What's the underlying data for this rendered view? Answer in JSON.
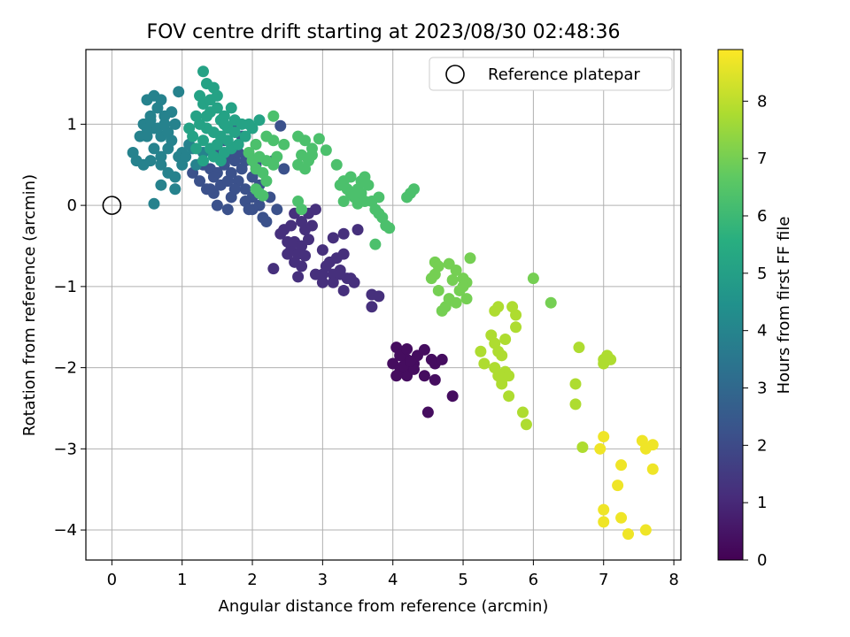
{
  "chart_data": {
    "type": "scatter",
    "title": "FOV centre drift starting at 2023/08/30 02:48:36",
    "xlabel": "Angular distance from reference (arcmin)",
    "ylabel": "Rotation from reference (arcmin)",
    "xlim": [
      -0.37,
      8.1
    ],
    "ylim": [
      -4.37,
      1.92
    ],
    "x_ticks": [
      0,
      1,
      2,
      3,
      4,
      5,
      6,
      7,
      8
    ],
    "y_ticks": [
      1,
      0,
      -1,
      -2,
      -3,
      -4
    ],
    "grid": true,
    "legend": {
      "position": "top-right",
      "entries": [
        {
          "label": "Reference platepar",
          "marker": "open-circle"
        }
      ]
    },
    "reference_point": {
      "x": 0,
      "y": 0
    },
    "colorbar": {
      "label": "Hours from first FF file",
      "range": [
        0,
        8.9
      ],
      "ticks": [
        0,
        1,
        2,
        3,
        4,
        5,
        6,
        7,
        8
      ],
      "colormap": "viridis"
    },
    "clusters": [
      {
        "hours": 0.3,
        "points": [
          [
            4.05,
            -1.75
          ],
          [
            4.15,
            -1.8
          ],
          [
            4.2,
            -1.9
          ],
          [
            4.25,
            -2.0
          ],
          [
            4.3,
            -1.95
          ],
          [
            4.1,
            -2.05
          ],
          [
            4.35,
            -1.85
          ],
          [
            4.2,
            -2.1
          ],
          [
            4.0,
            -1.95
          ],
          [
            4.15,
            -1.98
          ],
          [
            4.3,
            -2.02
          ],
          [
            4.05,
            -2.1
          ],
          [
            4.45,
            -1.78
          ],
          [
            4.55,
            -1.9
          ],
          [
            4.6,
            -1.95
          ],
          [
            4.7,
            -1.9
          ],
          [
            4.5,
            -2.55
          ],
          [
            4.6,
            -2.15
          ],
          [
            4.85,
            -2.35
          ],
          [
            4.45,
            -2.1
          ],
          [
            4.25,
            -1.92
          ],
          [
            4.1,
            -1.85
          ],
          [
            4.2,
            -1.77
          ]
        ]
      },
      {
        "hours": 1.2,
        "points": [
          [
            2.45,
            -0.3
          ],
          [
            2.55,
            -0.25
          ],
          [
            2.6,
            -0.45
          ],
          [
            2.7,
            -0.5
          ],
          [
            2.8,
            -0.42
          ],
          [
            2.55,
            -0.55
          ],
          [
            2.65,
            -0.6
          ],
          [
            2.75,
            -0.62
          ],
          [
            2.7,
            -0.75
          ],
          [
            2.65,
            -0.88
          ],
          [
            2.6,
            -0.7
          ],
          [
            2.3,
            -0.78
          ],
          [
            2.5,
            -0.45
          ],
          [
            2.75,
            -0.3
          ],
          [
            2.85,
            -0.25
          ],
          [
            2.7,
            -0.2
          ],
          [
            2.8,
            -0.1
          ],
          [
            2.9,
            -0.05
          ],
          [
            2.6,
            -0.1
          ],
          [
            2.4,
            -0.35
          ],
          [
            3.0,
            -0.55
          ],
          [
            3.05,
            -0.75
          ],
          [
            3.15,
            -0.85
          ],
          [
            3.25,
            -0.8
          ],
          [
            3.3,
            -0.6
          ],
          [
            3.1,
            -0.7
          ],
          [
            3.2,
            -0.65
          ],
          [
            3.35,
            -0.9
          ],
          [
            3.0,
            -0.95
          ],
          [
            3.15,
            -0.95
          ],
          [
            3.3,
            -1.05
          ],
          [
            3.25,
            -0.85
          ],
          [
            3.4,
            -0.9
          ],
          [
            3.15,
            -0.4
          ],
          [
            3.3,
            -0.35
          ],
          [
            3.5,
            -0.3
          ],
          [
            3.7,
            -1.1
          ],
          [
            3.8,
            -1.12
          ],
          [
            3.7,
            -1.25
          ],
          [
            3.45,
            -0.95
          ],
          [
            3.0,
            -0.85
          ],
          [
            2.9,
            -0.85
          ],
          [
            2.5,
            -0.6
          ]
        ]
      },
      {
        "hours": 2.2,
        "points": [
          [
            1.3,
            0.5
          ],
          [
            1.4,
            0.45
          ],
          [
            1.5,
            0.4
          ],
          [
            1.6,
            0.5
          ],
          [
            1.7,
            0.4
          ],
          [
            1.8,
            0.3
          ],
          [
            1.9,
            0.2
          ],
          [
            2.0,
            0.1
          ],
          [
            2.1,
            0.0
          ],
          [
            1.85,
            0.45
          ],
          [
            1.75,
            0.55
          ],
          [
            1.65,
            0.6
          ],
          [
            1.55,
            0.65
          ],
          [
            1.45,
            0.35
          ],
          [
            1.35,
            0.2
          ],
          [
            1.45,
            0.15
          ],
          [
            1.55,
            0.25
          ],
          [
            1.65,
            0.3
          ],
          [
            1.75,
            0.2
          ],
          [
            1.9,
            0.05
          ],
          [
            2.0,
            -0.05
          ],
          [
            2.15,
            -0.15
          ],
          [
            2.25,
            0.1
          ],
          [
            2.35,
            -0.05
          ],
          [
            2.2,
            -0.2
          ],
          [
            1.5,
            0.0
          ],
          [
            1.65,
            -0.05
          ],
          [
            1.8,
            0.65
          ],
          [
            1.95,
            0.6
          ],
          [
            2.05,
            0.5
          ],
          [
            1.25,
            0.3
          ],
          [
            1.15,
            0.4
          ],
          [
            2.3,
            0.55
          ],
          [
            2.45,
            0.45
          ],
          [
            2.0,
            0.35
          ],
          [
            1.7,
            0.1
          ],
          [
            1.95,
            -0.05
          ],
          [
            2.4,
            0.98
          ],
          [
            1.85,
            0.85
          ],
          [
            1.7,
            0.95
          ],
          [
            1.6,
            0.8
          ],
          [
            1.9,
            0.55
          ],
          [
            2.1,
            0.25
          ],
          [
            1.4,
            0.2
          ]
        ]
      },
      {
        "hours": 3.9,
        "points": [
          [
            0.5,
            1.3
          ],
          [
            0.6,
            1.35
          ],
          [
            0.7,
            1.3
          ],
          [
            0.65,
            1.2
          ],
          [
            0.55,
            1.1
          ],
          [
            0.45,
            1.0
          ],
          [
            0.6,
            0.95
          ],
          [
            0.7,
            0.85
          ],
          [
            0.8,
            0.9
          ],
          [
            0.9,
            1.0
          ],
          [
            0.75,
            1.1
          ],
          [
            0.85,
            1.15
          ],
          [
            0.95,
            1.4
          ],
          [
            0.8,
            0.7
          ],
          [
            0.7,
            0.6
          ],
          [
            0.55,
            0.55
          ],
          [
            0.45,
            0.5
          ],
          [
            0.35,
            0.55
          ],
          [
            0.3,
            0.65
          ],
          [
            0.4,
            0.85
          ],
          [
            0.5,
            0.95
          ],
          [
            0.6,
            0.7
          ],
          [
            0.7,
            0.5
          ],
          [
            0.8,
            0.4
          ],
          [
            0.9,
            0.35
          ],
          [
            0.95,
            0.6
          ],
          [
            1.0,
            0.65
          ],
          [
            1.1,
            0.75
          ],
          [
            1.0,
            0.5
          ],
          [
            0.9,
            0.2
          ],
          [
            0.7,
            0.25
          ],
          [
            0.6,
            0.02
          ],
          [
            1.2,
            0.5
          ],
          [
            1.3,
            0.65
          ],
          [
            0.65,
            0.95
          ],
          [
            0.55,
            1.05
          ],
          [
            0.5,
            0.85
          ],
          [
            0.75,
            1.0
          ],
          [
            0.85,
            0.8
          ],
          [
            1.05,
            0.6
          ],
          [
            1.15,
            0.7
          ]
        ]
      },
      {
        "hours": 5.1,
        "points": [
          [
            1.3,
            1.65
          ],
          [
            1.35,
            1.5
          ],
          [
            1.45,
            1.45
          ],
          [
            1.25,
            1.35
          ],
          [
            1.3,
            1.25
          ],
          [
            1.4,
            1.15
          ],
          [
            1.5,
            1.2
          ],
          [
            1.55,
            1.05
          ],
          [
            1.6,
            1.1
          ],
          [
            1.7,
            1.2
          ],
          [
            1.75,
            1.05
          ],
          [
            1.65,
            0.95
          ],
          [
            1.55,
            0.85
          ],
          [
            1.45,
            0.9
          ],
          [
            1.35,
            0.95
          ],
          [
            1.25,
            1.0
          ],
          [
            1.2,
            1.1
          ],
          [
            1.3,
            0.8
          ],
          [
            1.4,
            0.7
          ],
          [
            1.5,
            0.75
          ],
          [
            1.6,
            0.65
          ],
          [
            1.7,
            0.7
          ],
          [
            1.8,
            0.75
          ],
          [
            1.9,
            0.85
          ],
          [
            2.0,
            0.95
          ],
          [
            2.1,
            1.05
          ],
          [
            1.95,
            1.0
          ],
          [
            1.15,
            0.85
          ],
          [
            1.1,
            0.95
          ],
          [
            1.2,
            0.7
          ],
          [
            1.3,
            0.55
          ],
          [
            1.45,
            0.6
          ],
          [
            1.55,
            0.55
          ],
          [
            1.65,
            0.8
          ],
          [
            1.75,
            0.9
          ],
          [
            1.85,
            1.0
          ],
          [
            1.4,
            1.3
          ],
          [
            1.5,
            1.35
          ],
          [
            1.35,
            1.1
          ],
          [
            1.6,
            1.0
          ]
        ]
      },
      {
        "hours": 6.3,
        "points": [
          [
            2.0,
            0.55
          ],
          [
            2.1,
            0.6
          ],
          [
            2.2,
            0.55
          ],
          [
            2.3,
            0.5
          ],
          [
            2.05,
            0.45
          ],
          [
            2.15,
            0.4
          ],
          [
            2.2,
            0.3
          ],
          [
            2.35,
            0.6
          ],
          [
            2.45,
            0.75
          ],
          [
            2.3,
            0.8
          ],
          [
            2.2,
            0.85
          ],
          [
            2.3,
            1.1
          ],
          [
            2.05,
            0.75
          ],
          [
            1.95,
            0.65
          ],
          [
            2.1,
            0.15
          ],
          [
            2.15,
            0.12
          ],
          [
            2.05,
            0.2
          ],
          [
            2.65,
            0.85
          ],
          [
            2.75,
            0.8
          ],
          [
            2.85,
            0.7
          ],
          [
            2.95,
            0.82
          ],
          [
            3.05,
            0.68
          ],
          [
            2.7,
            0.62
          ],
          [
            2.8,
            0.55
          ],
          [
            2.75,
            0.45
          ],
          [
            2.65,
            0.5
          ],
          [
            2.85,
            0.62
          ],
          [
            3.2,
            0.5
          ],
          [
            3.3,
            0.3
          ],
          [
            3.35,
            0.2
          ],
          [
            3.4,
            0.15
          ],
          [
            3.45,
            0.1
          ],
          [
            3.5,
            0.2
          ],
          [
            3.55,
            0.3
          ],
          [
            3.6,
            0.35
          ],
          [
            3.65,
            0.25
          ],
          [
            3.55,
            0.15
          ],
          [
            3.5,
            0.02
          ],
          [
            3.6,
            0.05
          ],
          [
            3.7,
            0.05
          ],
          [
            3.75,
            -0.05
          ],
          [
            3.8,
            -0.1
          ],
          [
            3.85,
            -0.15
          ],
          [
            3.9,
            -0.25
          ],
          [
            3.95,
            -0.28
          ],
          [
            3.75,
            -0.48
          ],
          [
            3.8,
            0.1
          ],
          [
            4.2,
            0.1
          ],
          [
            4.25,
            0.15
          ],
          [
            4.3,
            0.2
          ],
          [
            3.3,
            0.05
          ],
          [
            3.4,
            0.35
          ],
          [
            3.25,
            0.25
          ],
          [
            2.65,
            0.05
          ],
          [
            2.7,
            -0.05
          ]
        ]
      },
      {
        "hours": 7.0,
        "points": [
          [
            4.6,
            -0.7
          ],
          [
            4.65,
            -0.75
          ],
          [
            4.8,
            -0.72
          ],
          [
            4.9,
            -0.8
          ],
          [
            5.0,
            -0.9
          ],
          [
            5.05,
            -0.95
          ],
          [
            5.1,
            -0.65
          ],
          [
            4.85,
            -0.92
          ],
          [
            4.95,
            -1.05
          ],
          [
            5.0,
            -1.0
          ],
          [
            5.05,
            -1.15
          ],
          [
            4.7,
            -1.3
          ],
          [
            4.75,
            -1.25
          ],
          [
            4.8,
            -1.15
          ],
          [
            4.65,
            -1.05
          ],
          [
            4.6,
            -0.85
          ],
          [
            4.55,
            -0.9
          ],
          [
            4.9,
            -1.2
          ],
          [
            6.0,
            -0.9
          ],
          [
            6.25,
            -1.2
          ]
        ]
      },
      {
        "hours": 7.8,
        "points": [
          [
            5.25,
            -1.8
          ],
          [
            5.3,
            -1.95
          ],
          [
            5.4,
            -1.6
          ],
          [
            5.45,
            -1.7
          ],
          [
            5.5,
            -1.8
          ],
          [
            5.45,
            -2.0
          ],
          [
            5.5,
            -2.1
          ],
          [
            5.55,
            -2.15
          ],
          [
            5.6,
            -2.05
          ],
          [
            5.65,
            -2.1
          ],
          [
            5.55,
            -2.2
          ],
          [
            5.65,
            -2.35
          ],
          [
            5.6,
            -1.65
          ],
          [
            5.75,
            -1.5
          ],
          [
            5.75,
            -1.35
          ],
          [
            5.7,
            -1.25
          ],
          [
            5.5,
            -1.25
          ],
          [
            5.45,
            -1.3
          ],
          [
            5.85,
            -2.55
          ],
          [
            5.9,
            -2.7
          ],
          [
            5.55,
            -1.85
          ],
          [
            6.6,
            -2.2
          ],
          [
            6.6,
            -2.45
          ],
          [
            6.7,
            -2.98
          ],
          [
            6.65,
            -1.75
          ],
          [
            7.0,
            -1.9
          ],
          [
            7.05,
            -1.85
          ],
          [
            7.1,
            -1.9
          ],
          [
            7.0,
            -1.95
          ]
        ]
      },
      {
        "hours": 8.7,
        "points": [
          [
            7.0,
            -2.85
          ],
          [
            6.95,
            -3.0
          ],
          [
            7.55,
            -2.9
          ],
          [
            7.6,
            -3.0
          ],
          [
            7.7,
            -2.95
          ],
          [
            7.7,
            -3.25
          ],
          [
            7.25,
            -3.2
          ],
          [
            7.2,
            -3.45
          ],
          [
            7.0,
            -3.75
          ],
          [
            7.25,
            -3.85
          ],
          [
            7.0,
            -3.9
          ],
          [
            7.35,
            -4.05
          ],
          [
            7.6,
            -4.0
          ]
        ]
      }
    ]
  }
}
